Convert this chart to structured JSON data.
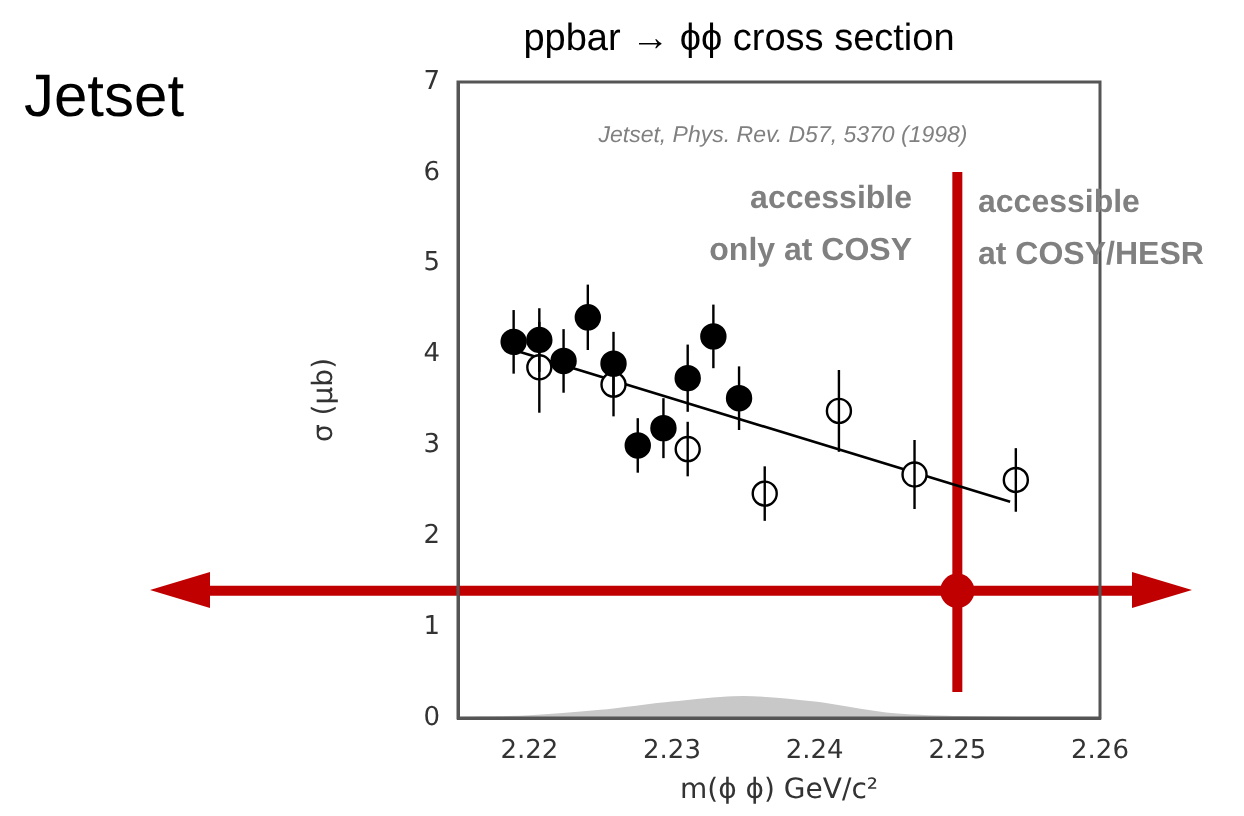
{
  "chart_data": {
    "type": "scatter",
    "title": "ppbar → ϕϕ cross section",
    "xlabel": "m(ϕ ϕ) GeV/c²",
    "ylabel": "σ (μb)",
    "annotations": [
      "Jetset",
      "Jetset, Phys. Rev. D57, 5370 (1998)",
      "accessible only at COSY",
      "accessible at COSY/HESR"
    ],
    "xlim": [
      2.215,
      2.26
    ],
    "xticks": [
      {
        "value": 2.22,
        "label": "2.22"
      },
      {
        "value": 2.23,
        "label": "2.23"
      },
      {
        "value": 2.24,
        "label": "2.24"
      },
      {
        "value": 2.25,
        "label": "2.25"
      },
      {
        "value": 2.26,
        "label": "2.26"
      }
    ],
    "ylim": [
      0,
      7
    ],
    "yticks": [
      0,
      1,
      2,
      3,
      4,
      5,
      6,
      7
    ],
    "grid": false,
    "legend": false,
    "series": [
      {
        "type": "area",
        "color": "#c8c8c8",
        "x": [
          2.215,
          2.22,
          2.225,
          2.23,
          2.235,
          2.24,
          2.245,
          2.25,
          2.255,
          2.26
        ],
        "values": [
          0,
          0.02,
          0.08,
          0.17,
          0.23,
          0.17,
          0.05,
          0.01,
          0,
          0
        ]
      },
      {
        "color": "#000000",
        "marker": "circle",
        "x": [
          2.2189,
          2.2207,
          2.2224,
          2.2241,
          2.2259,
          2.2276,
          2.2294,
          2.2311,
          2.2329,
          2.2347
        ],
        "values": [
          4.14,
          4.16,
          3.93,
          4.41,
          3.9,
          3.0,
          3.19,
          3.74,
          4.2,
          3.52
        ],
        "errors": [
          0.35,
          0.35,
          0.35,
          0.36,
          0.35,
          0.3,
          0.33,
          0.37,
          0.35,
          0.35
        ]
      },
      {
        "color": "#ffffff",
        "marker": "circle",
        "x": [
          2.2207,
          2.2259,
          2.2311,
          2.2365,
          2.2417,
          2.247,
          2.2541
        ],
        "values": [
          3.86,
          3.67,
          2.96,
          2.47,
          3.38,
          2.68,
          2.62
        ],
        "errors": [
          0.5,
          0.35,
          0.3,
          0.3,
          0.45,
          0.38,
          0.35
        ]
      },
      {
        "type": "line",
        "color": "#000000",
        "marker": "none",
        "x": [
          2.2189,
          2.2537
        ],
        "values": [
          4.05,
          2.38
        ]
      },
      {
        "color": "#c00000",
        "marker": "circle",
        "x": [
          2.25
        ],
        "values": [
          1.4
        ]
      }
    ],
    "ref_lines": [
      {
        "axis": "y",
        "value": 1.4,
        "color": "#c00000"
      },
      {
        "axis": "x",
        "value": 2.25,
        "color": "#c00000"
      }
    ]
  }
}
